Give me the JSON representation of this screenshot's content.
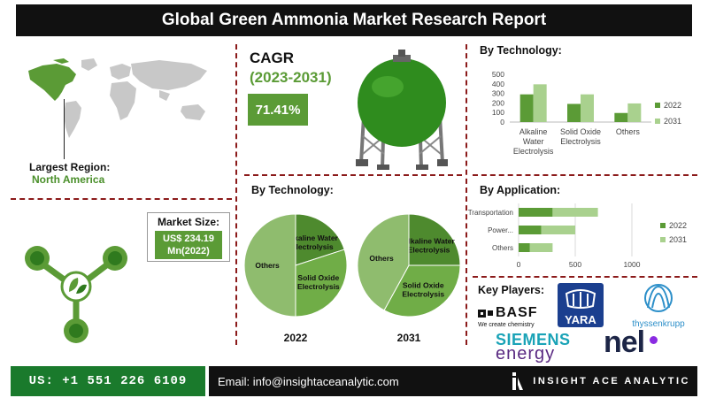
{
  "title": "Global Green Ammonia Market Research Report",
  "largest_region": {
    "label": "Largest Region:",
    "value": "North America"
  },
  "cagr": {
    "label": "CAGR",
    "years": "(2023-2031)",
    "value": "71.41%"
  },
  "market_size": {
    "label": "Market Size:",
    "line1": "US$ 234.19",
    "line2": "Mn(2022)"
  },
  "key_players": {
    "label": "Key Players:",
    "basf": "BASF",
    "basf_tag": "We create chemistry",
    "yara": "YARA",
    "thyssenkrupp": "thyssenkrupp",
    "siemens": "SIEMENS",
    "energy": "energy",
    "nel": "nel"
  },
  "footer": {
    "phone": "US: +1 551 226 6109",
    "email": "Email: info@insightaceanalytic.com",
    "brand": "INSIGHT ACE ANALYTIC"
  },
  "colors": {
    "dark_green": "#5b9b36",
    "light_green": "#a9d18e",
    "pie_dark": "#4e8a2e",
    "pie_mid": "#70ad47",
    "pie_light": "#8fbc6e"
  },
  "chart_data": [
    {
      "type": "bar",
      "title": "By Technology:",
      "categories": [
        "Alkaline Water Electrolysis",
        "Solid Oxide Electrolysis",
        "Others"
      ],
      "category_lines": [
        [
          "Alkaline",
          "Water",
          "Electrolysis"
        ],
        [
          "Solid Oxide",
          "Electrolysis"
        ],
        [
          "Others"
        ]
      ],
      "series": [
        {
          "name": "2022",
          "values": [
            290,
            190,
            95
          ],
          "color": "#5b9b36"
        },
        {
          "name": "2031",
          "values": [
            395,
            290,
            195
          ],
          "color": "#a9d18e"
        }
      ],
      "ylim": [
        0,
        400
      ],
      "yticks": [
        0,
        100,
        200,
        300,
        400,
        500
      ],
      "legend": "right",
      "grid": false
    },
    {
      "type": "bar",
      "orientation": "horizontal",
      "title": "By Application:",
      "categories": [
        "Transportation",
        "Power...",
        "Others"
      ],
      "series": [
        {
          "name": "2022",
          "values": [
            300,
            200,
            100
          ],
          "color": "#5b9b36"
        },
        {
          "name": "2031",
          "values": [
            400,
            300,
            200
          ],
          "color": "#a9d18e"
        }
      ],
      "xlim": [
        0,
        1000
      ],
      "xticks": [
        0,
        500,
        1000
      ],
      "legend": "right",
      "grid": true
    },
    {
      "type": "pie",
      "title": "By Technology:",
      "caption": "2022",
      "slices": [
        {
          "label": "Alkaline Water Electrolysis",
          "value": 20,
          "color": "#4e8a2e"
        },
        {
          "label": "Solid Oxide Electrolysis",
          "value": 30,
          "color": "#70ad47"
        },
        {
          "label": "Others",
          "value": 50,
          "color": "#8fbc6e"
        }
      ]
    },
    {
      "type": "pie",
      "caption": "2031",
      "slices": [
        {
          "label": "Alkaline Water Electrolysis",
          "value": 25,
          "color": "#4e8a2e"
        },
        {
          "label": "Solid Oxide Electrolysis",
          "value": 33,
          "color": "#70ad47"
        },
        {
          "label": "Others",
          "value": 42,
          "color": "#8fbc6e"
        }
      ]
    }
  ]
}
